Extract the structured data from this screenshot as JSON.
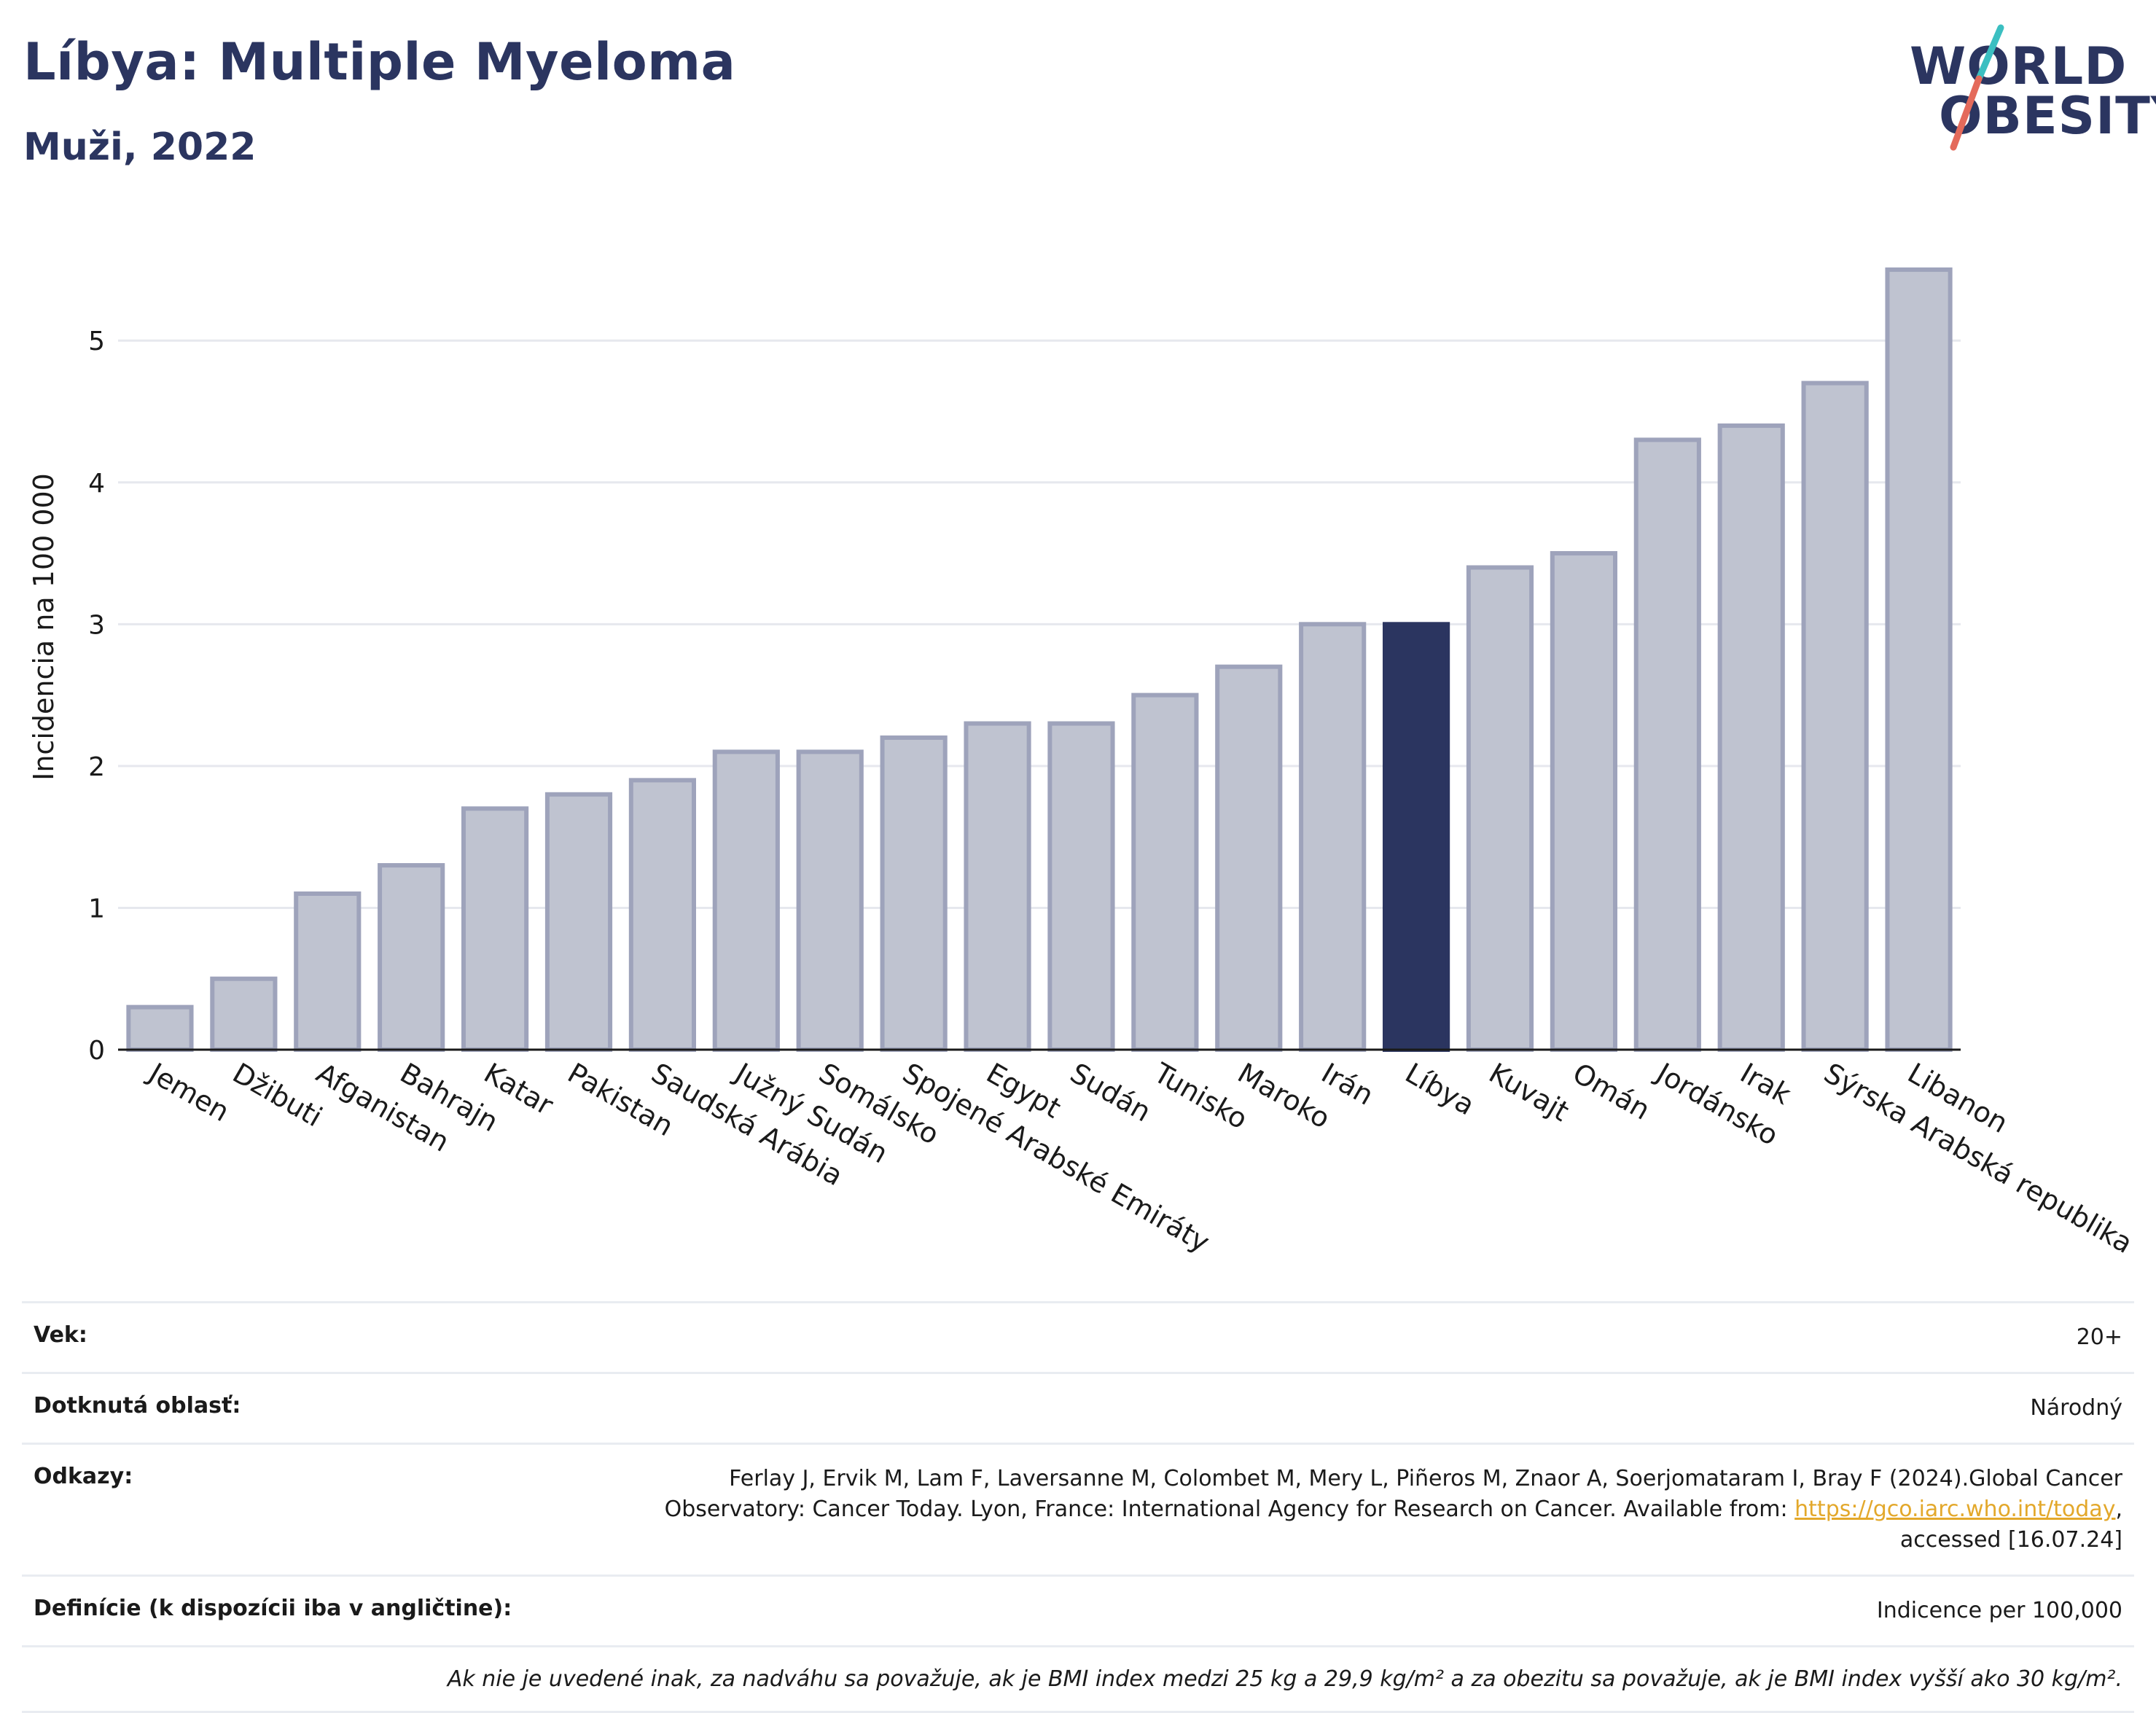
{
  "header": {
    "title": "Líbya: Multiple Myeloma",
    "subtitle": "Muži, 2022"
  },
  "logo": {
    "line1": "WORLD",
    "line2": "OBESITY",
    "colors": {
      "text": "#2b3560",
      "slash_top": "#3bbfc1",
      "slash_bottom": "#e46a5b"
    }
  },
  "colors": {
    "bar": "#bfc3d0",
    "bar_border": "#9ea3bb",
    "highlight": "#2b3560",
    "grid": "#e6e8ee"
  },
  "chart_data": {
    "type": "bar",
    "ylabel": "Incidencia na 100 000",
    "xlabel": "",
    "ylim": [
      0,
      5.7
    ],
    "yticks": [
      0,
      1,
      2,
      3,
      4,
      5
    ],
    "grid": true,
    "highlight": "Líbya",
    "categories": [
      "Jemen",
      "Džibuti",
      "Afganistan",
      "Bahrajn",
      "Katar",
      "Pakistan",
      "Saudská Arábia",
      "Južný Sudán",
      "Somálsko",
      "Spojené Arabské Emiráty",
      "Egypt",
      "Sudán",
      "Tunisko",
      "Maroko",
      "Irán",
      "Líbya",
      "Kuvajt",
      "Omán",
      "Jordánsko",
      "Irak",
      "Sýrska Arabská republika",
      "Libanon"
    ],
    "values": [
      0.3,
      0.5,
      1.1,
      1.3,
      1.7,
      1.8,
      1.9,
      2.1,
      2.1,
      2.2,
      2.3,
      2.3,
      2.5,
      2.7,
      3.0,
      3.0,
      3.4,
      3.5,
      4.3,
      4.4,
      4.7,
      5.5
    ]
  },
  "info": {
    "age_label": "Vek:",
    "age_value": "20+",
    "area_label": "Dotknutá oblasť:",
    "area_value": "Národný",
    "refs_label": "Odkazy:",
    "refs_text1": "Ferlay J, Ervik M, Lam F, Laversanne M, Colombet M, Mery L, Piñeros M, Znaor A, Soerjomataram I, Bray F (2024).Global Cancer",
    "refs_text2": "Observatory: Cancer Today. Lyon, France: International Agency for Research on Cancer. Available from:",
    "refs_link": "https://gco.iarc.who.int/today",
    "refs_text3": "accessed [16.07.24]",
    "def_label": "Definície (k dispozícii iba v angličtine):",
    "def_value": "Indicence per 100,000",
    "note": "Ak nie je uvedené inak, za nadváhu sa považuje, ak je BMI index medzi 25 kg a 29,9 kg/m² a za obezitu sa považuje, ak je BMI index vyšší ako 30 kg/m²."
  }
}
